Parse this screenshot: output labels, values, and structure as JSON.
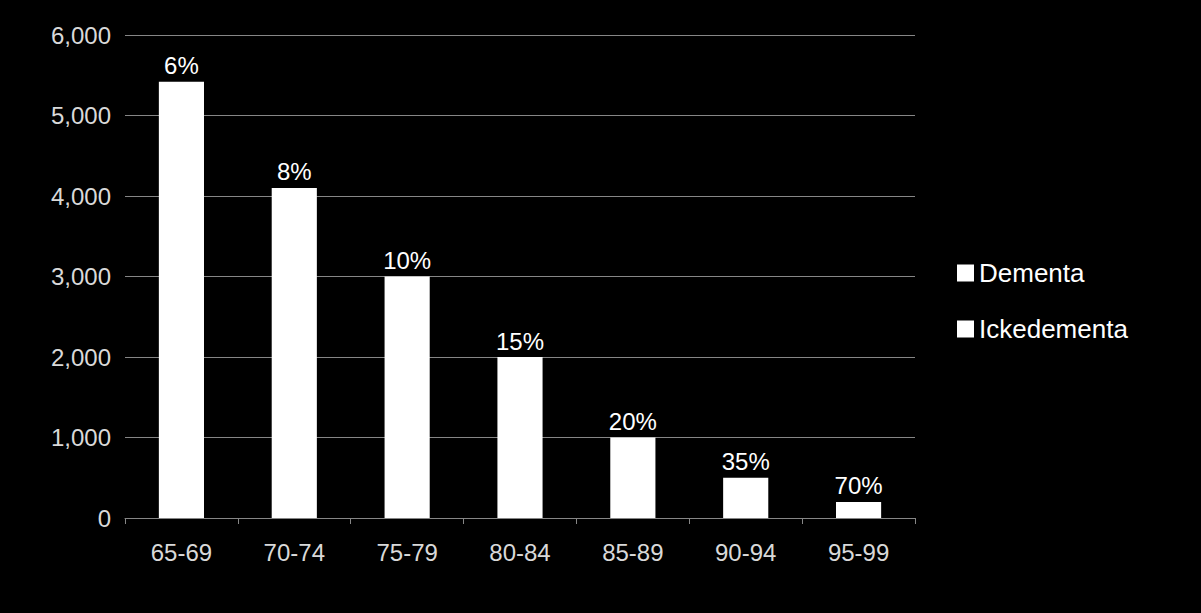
{
  "chart_data": {
    "type": "bar",
    "categories": [
      "65-69",
      "70-74",
      "75-79",
      "80-84",
      "85-89",
      "90-94",
      "95-99"
    ],
    "series": [
      {
        "name": "Dementa",
        "color": "#ffffff",
        "values": [
          5420,
          4100,
          3000,
          2000,
          1000,
          500,
          200
        ]
      },
      {
        "name": "Ickedementa",
        "color": "#ffffff",
        "values": [
          null,
          null,
          null,
          null,
          null,
          null,
          null
        ]
      }
    ],
    "annotations": [
      "6%",
      "8%",
      "10%",
      "15%",
      "20%",
      "35%",
      "70%"
    ],
    "ylim": [
      0,
      6000
    ],
    "yticks": [
      0,
      1000,
      2000,
      3000,
      4000,
      5000,
      6000
    ],
    "grid": true,
    "legend": "right"
  }
}
